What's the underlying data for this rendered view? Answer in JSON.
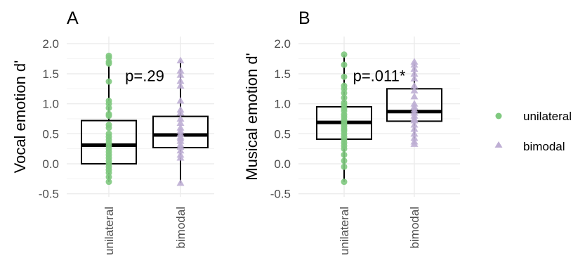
{
  "figure": {
    "legend": {
      "placement": "right",
      "items": [
        {
          "label": "unilateral",
          "shape": "circle",
          "color": "#7fc97f"
        },
        {
          "label": "bimodal",
          "shape": "triangle",
          "color": "#beaed4"
        }
      ]
    }
  },
  "chart_data": [
    {
      "type": "box",
      "panel_label": "A",
      "ylabel": "Vocal emotion d'",
      "categories": [
        "unilateral",
        "bimodal"
      ],
      "ylim": [
        -0.55,
        2.12
      ],
      "yticks": [
        -0.5,
        0.0,
        0.5,
        1.0,
        1.5,
        2.0
      ],
      "ytick_labels": [
        "-0.5",
        "0.0",
        "0.5",
        "1.0",
        "1.5",
        "2.0"
      ],
      "grid": true,
      "annotation": "p=.29",
      "annotation_at": [
        1.5,
        1.47
      ],
      "boxes": [
        {
          "name": "unilateral",
          "q1": 0.0,
          "median": 0.31,
          "q3": 0.72,
          "whisker_low": -0.3,
          "whisker_high": 1.8,
          "points": [
            1.8,
            1.77,
            1.7,
            1.67,
            1.37,
            1.05,
            1.0,
            0.93,
            0.83,
            0.8,
            0.65,
            0.6,
            0.5,
            0.45,
            0.4,
            0.35,
            0.3,
            0.25,
            0.2,
            0.15,
            0.1,
            0.05,
            0.0,
            -0.05,
            -0.1,
            -0.15,
            -0.22,
            -0.3
          ]
        },
        {
          "name": "bimodal",
          "q1": 0.27,
          "median": 0.48,
          "q3": 0.79,
          "whisker_low": -0.32,
          "whisker_high": 1.72,
          "points": [
            1.72,
            1.55,
            1.48,
            1.38,
            1.3,
            1.05,
            0.9,
            0.85,
            0.75,
            0.68,
            0.6,
            0.55,
            0.5,
            0.45,
            0.42,
            0.38,
            0.32,
            0.28,
            0.22,
            0.15,
            0.1,
            -0.32
          ]
        }
      ]
    },
    {
      "type": "box",
      "panel_label": "B",
      "ylabel": "Musical emotion d'",
      "categories": [
        "unilateral",
        "bimodal"
      ],
      "ylim": [
        -0.55,
        2.12
      ],
      "yticks": [
        -0.5,
        0.0,
        0.5,
        1.0,
        1.5,
        2.0
      ],
      "ytick_labels": [
        "-0.5",
        "0.0",
        "0.5",
        "1.0",
        "1.5",
        "2.0"
      ],
      "grid": true,
      "annotation": "p=.011*",
      "annotation_at": [
        1.5,
        1.47
      ],
      "boxes": [
        {
          "name": "unilateral",
          "q1": 0.41,
          "median": 0.69,
          "q3": 0.95,
          "whisker_low": -0.3,
          "whisker_high": 1.82,
          "points": [
            1.82,
            1.65,
            1.45,
            1.3,
            1.25,
            1.18,
            1.1,
            1.02,
            0.98,
            0.92,
            0.88,
            0.82,
            0.78,
            0.73,
            0.7,
            0.66,
            0.62,
            0.58,
            0.55,
            0.5,
            0.45,
            0.4,
            0.35,
            0.3,
            0.25,
            0.15,
            0.05,
            -0.05,
            -0.3
          ]
        },
        {
          "name": "bimodal",
          "q1": 0.71,
          "median": 0.87,
          "q3": 1.25,
          "whisker_low": 0.33,
          "whisker_high": 1.7,
          "points": [
            1.7,
            1.65,
            1.58,
            1.5,
            1.42,
            1.3,
            1.22,
            1.12,
            1.0,
            0.95,
            0.9,
            0.85,
            0.8,
            0.75,
            0.72,
            0.65,
            0.58,
            0.5,
            0.43,
            0.37,
            0.33
          ]
        }
      ]
    }
  ]
}
